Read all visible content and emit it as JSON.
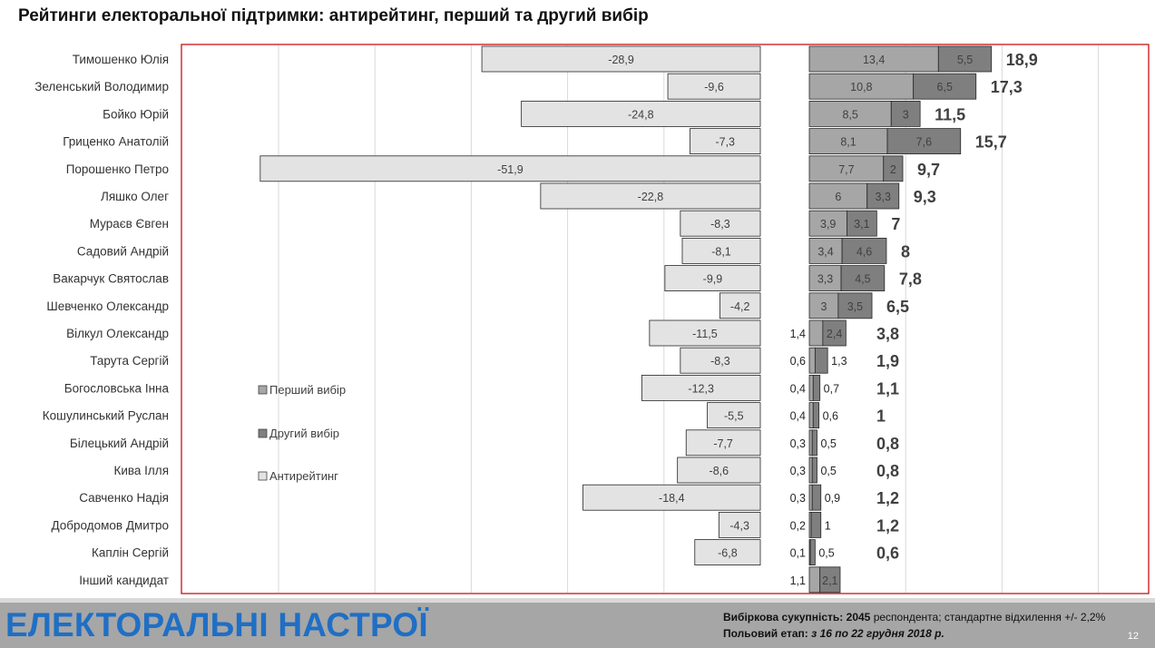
{
  "title": "Рейтинги електоральної підтримки: антирейтинг, перший та другий вибір",
  "colors": {
    "first_choice": "#a6a6a6",
    "second_choice": "#7f7f7f",
    "anti_rating": "#e3e3e3",
    "frame": "#c00000",
    "footer_bg": "#a6a6a6",
    "footer_title": "#1f6fc5"
  },
  "chart_data": {
    "type": "bar",
    "orientation": "horizontal",
    "stacked": true,
    "categories": [
      "Тимошенко Юлія",
      "Зеленський Володимир",
      "Бойко Юрій",
      "Гриценко Анатолій",
      "Порошенко Петро",
      "Ляшко Олег",
      "Мураєв Євген",
      "Садовий Андрій",
      "Вакарчук Святослав",
      "Шевченко Олександр",
      "Вілкул Олександр",
      "Тарута Сергій",
      "Богословська Інна",
      "Кошулинський Руслан",
      "Білецький Андрій",
      "Кива Ілля",
      "Савченко Надія",
      "Добродомов Дмитро",
      "Каплін Сергій",
      "Інший кандидат"
    ],
    "series": [
      {
        "name": "Перший вибір",
        "values": [
          13.4,
          10.8,
          8.5,
          8.1,
          7.7,
          6,
          3.9,
          3.4,
          3.3,
          3,
          1.4,
          0.6,
          0.4,
          0.4,
          0.3,
          0.3,
          0.3,
          0.2,
          0.1,
          1.1
        ]
      },
      {
        "name": "Другий вибір",
        "values": [
          5.5,
          6.5,
          3,
          7.6,
          2,
          3.3,
          3.1,
          4.6,
          4.5,
          3.5,
          2.4,
          1.3,
          0.7,
          0.6,
          0.5,
          0.5,
          0.9,
          1,
          0.5,
          2.1
        ]
      },
      {
        "name": "Антирейтинг",
        "values": [
          -28.9,
          -9.6,
          -24.8,
          -7.3,
          -51.9,
          -22.8,
          -8.3,
          -8.1,
          -9.9,
          -4.2,
          -11.5,
          -8.3,
          -12.3,
          -5.5,
          -7.7,
          -8.6,
          -18.4,
          -4.3,
          -6.8,
          null
        ]
      }
    ],
    "anti_labels": [
      "-28,9",
      "-9,6",
      "-24,8",
      "-7,3",
      "-51,9",
      "-22,8",
      "-8,3",
      "-8,1",
      "-9,9",
      "-4,2",
      "-11,5",
      "-8,3",
      "-12,3",
      "-5,5",
      "-7,7",
      "-8,6",
      "-18,4",
      "-4,3",
      "-6,8",
      ""
    ],
    "first_labels": [
      "13,4",
      "10,8",
      "8,5",
      "8,1",
      "7,7",
      "6",
      "3,9",
      "3,4",
      "3,3",
      "3",
      "1,4",
      "0,6",
      "0,4",
      "0,4",
      "0,3",
      "0,3",
      "0,3",
      "0,2",
      "0,1",
      "1,1"
    ],
    "second_labels": [
      "5,5",
      "6,5",
      "3",
      "7,6",
      "2",
      "3,3",
      "3,1",
      "4,6",
      "4,5",
      "3,5",
      "2,4",
      "1,3",
      "0,7",
      "0,6",
      "0,5",
      "0,5",
      "0,9",
      "1",
      "0,5",
      "2,1"
    ],
    "totals": [
      18.9,
      17.3,
      11.5,
      15.7,
      9.7,
      9.3,
      7,
      8,
      7.8,
      6.5,
      3.8,
      1.9,
      1.1,
      1,
      0.8,
      0.8,
      1.2,
      1.2,
      0.6,
      null
    ],
    "total_labels": [
      "18,9",
      "17,3",
      "11,5",
      "15,7",
      "9,7",
      "9,3",
      "7",
      "8",
      "7,8",
      "6,5",
      "3,8",
      "1,9",
      "1,1",
      "1",
      "0,8",
      "0,8",
      "1,2",
      "1,2",
      "0,6",
      ""
    ],
    "anti_axis_range": [
      -60,
      0
    ],
    "support_axis_range": [
      0,
      35
    ],
    "grid": true,
    "legend": {
      "position": "center-left",
      "entries": [
        "Перший вибір",
        "Другий вибір",
        "Антирейтинг"
      ]
    }
  },
  "footer": {
    "title": "ЕЛЕКТОРАЛЬНІ НАСТРОЇ",
    "sample_label": "Вибіркова сукупність:",
    "sample_size": "2045",
    "sample_text": "респондента; стандартне  відхилення +/- 2,2%",
    "fieldwork_label": "Польовий етап:",
    "fieldwork_text": "з 16 по 22 грудня 2018 р.",
    "page_number": "12"
  }
}
